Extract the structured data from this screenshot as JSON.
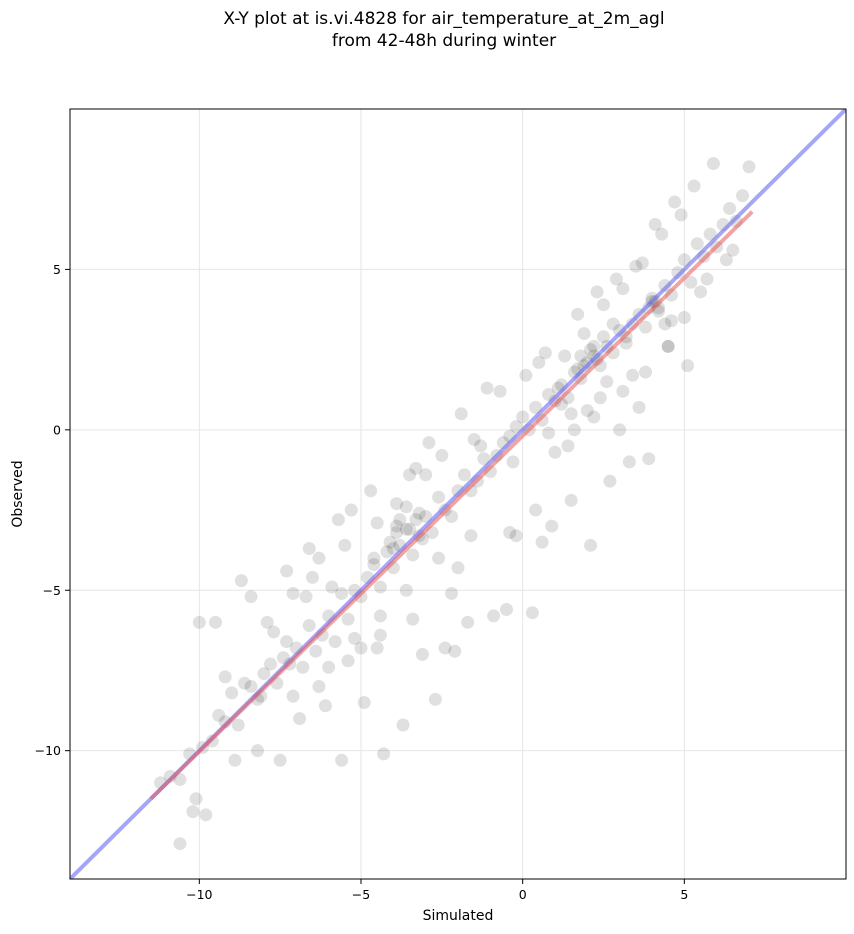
{
  "chart_data": {
    "type": "scatter",
    "title_line1": "X-Y plot at is.vi.4828 for air_temperature_at_2m_agl",
    "title_line2": "from 42-48h during winter",
    "xlabel": "Simulated",
    "ylabel": "Observed",
    "xlim": [
      -14,
      10
    ],
    "ylim": [
      -14,
      10
    ],
    "x_ticks": [
      -10,
      -5,
      0,
      5
    ],
    "y_ticks": [
      -10,
      -5,
      0,
      5
    ],
    "x_tick_labels": [
      "−10",
      "−5",
      "0",
      "5"
    ],
    "y_tick_labels": [
      "−10",
      "−5",
      "0",
      "5"
    ],
    "grid": true,
    "point_color": "#000000",
    "identity_line": {
      "x": [
        -14,
        10
      ],
      "y": [
        -14,
        10
      ],
      "color": "#6b6bf0"
    },
    "fit_line": {
      "x": [
        -11.5,
        7.1
      ],
      "y": [
        -11.5,
        6.8
      ],
      "color": "#e85a5a"
    },
    "points_x": [
      -11.2,
      -10.9,
      -10.6,
      -10.3,
      -10.1,
      -9.9,
      -9.6,
      -9.4,
      -9.2,
      -9.0,
      -8.8,
      -8.6,
      -8.4,
      -8.2,
      -8.0,
      -7.8,
      -7.6,
      -7.4,
      -7.2,
      -7.0,
      -6.8,
      -6.6,
      -6.4,
      -6.2,
      -6.0,
      -5.8,
      -5.6,
      -5.4,
      -5.2,
      -5.0,
      -4.8,
      -4.6,
      -4.4,
      -4.2,
      -4.0,
      -3.8,
      -3.6,
      -3.4,
      -3.2,
      -3.0,
      -2.8,
      -2.6,
      -2.4,
      -2.2,
      -2.0,
      -1.8,
      -1.6,
      -1.4,
      -1.2,
      -1.0,
      -0.8,
      -0.6,
      -0.4,
      -0.2,
      0.0,
      0.2,
      0.4,
      0.6,
      0.8,
      1.0,
      1.2,
      1.4,
      1.6,
      1.8,
      2.0,
      2.2,
      2.4,
      2.6,
      2.8,
      3.0,
      3.2,
      3.4,
      3.6,
      3.8,
      4.0,
      4.2,
      4.4,
      4.6,
      4.8,
      5.0,
      5.2,
      5.4,
      5.6,
      5.8,
      6.0,
      6.2,
      6.4,
      6.6,
      6.8,
      -10.6,
      -10.2,
      -9.8,
      -8.9,
      -8.2,
      -7.5,
      -6.9,
      -6.1,
      -5.6,
      -4.9,
      -4.3,
      -3.7,
      -3.1,
      -2.7,
      -2.1,
      -1.7,
      -0.9,
      -0.5,
      0.3,
      0.9,
      1.5,
      2.1,
      2.7,
      3.3,
      3.9,
      4.5,
      5.1,
      5.7,
      6.3,
      -9.5,
      -8.7,
      -7.9,
      -7.1,
      -6.3,
      -5.5,
      -4.7,
      -3.9,
      -3.3,
      -2.5,
      -1.5,
      -0.7,
      0.5,
      1.1,
      1.7,
      2.3,
      2.9,
      3.5,
      4.1,
      4.7,
      5.3,
      5.9,
      -7.3,
      -6.7,
      -5.9,
      -5.3,
      -4.5,
      -3.5,
      -2.9,
      -1.9,
      -1.1,
      0.1,
      0.7,
      1.3,
      1.9,
      2.5,
      3.1,
      3.7,
      4.3,
      4.9,
      -3.8,
      -3.5,
      -3.2,
      -4.1,
      -3.9,
      1.8,
      2.2,
      2.5,
      1.2,
      1.5,
      2.8,
      3.2,
      4.0,
      4.2,
      -4.4,
      -2.4,
      -0.3,
      1.0,
      3.0,
      -6.5,
      -5.0,
      -2.0,
      0.6,
      3.6,
      -8.4,
      -7.7,
      -6.6,
      -5.7,
      -4.6,
      -3.0,
      -1.3,
      0.8,
      2.4,
      4.4,
      -10.0,
      -9.2,
      -8.1,
      -7.3,
      -6.0,
      -5.2,
      -4.4,
      -3.6,
      -2.6,
      -1.6,
      -0.2,
      1.4,
      2.0,
      2.6,
      3.4,
      4.6,
      5.5,
      6.5,
      7.0,
      -7.1,
      -6.3,
      -5.4,
      -4.5,
      -3.4,
      -2.2,
      -0.4,
      0.4,
      1.6,
      2.2,
      3.1,
      3.8,
      4.5,
      5.0,
      -3.9,
      -3.3,
      -4.0,
      -3.6,
      -3.1,
      1.9,
      2.3,
      2.1,
      1.7,
      4.1,
      3.9
    ],
    "points_y": [
      -11.0,
      -10.8,
      -10.9,
      -10.1,
      -11.5,
      -9.9,
      -9.7,
      -8.9,
      -9.1,
      -8.2,
      -9.2,
      -7.9,
      -8.0,
      -8.4,
      -7.6,
      -7.3,
      -7.9,
      -7.1,
      -7.3,
      -6.8,
      -7.4,
      -6.1,
      -6.9,
      -6.4,
      -5.8,
      -6.6,
      -5.1,
      -5.9,
      -5.0,
      -5.2,
      -4.6,
      -4.2,
      -4.9,
      -3.8,
      -4.3,
      -3.6,
      -3.1,
      -3.9,
      -3.3,
      -2.7,
      -3.2,
      -2.1,
      -2.5,
      -2.7,
      -1.9,
      -1.4,
      -1.9,
      -1.6,
      -0.9,
      -1.3,
      -0.8,
      -0.4,
      -0.2,
      0.1,
      0.4,
      0.0,
      0.7,
      0.3,
      1.1,
      0.9,
      1.4,
      1.0,
      1.8,
      1.6,
      2.1,
      2.3,
      2.0,
      2.6,
      2.4,
      3.1,
      2.7,
      3.3,
      3.6,
      3.2,
      4.0,
      3.7,
      4.5,
      4.2,
      4.9,
      5.3,
      4.6,
      5.8,
      5.4,
      6.1,
      5.7,
      6.4,
      6.9,
      6.5,
      7.3,
      -12.9,
      -11.9,
      -12.0,
      -10.3,
      -10.0,
      -10.3,
      -9.0,
      -8.6,
      -10.3,
      -8.5,
      -10.1,
      -9.2,
      -7.0,
      -8.4,
      -6.9,
      -6.0,
      -5.8,
      -5.6,
      -5.7,
      -3.0,
      -2.2,
      -3.6,
      -1.6,
      -1.0,
      -0.9,
      2.6,
      2.0,
      4.7,
      5.3,
      -6.0,
      -4.7,
      -6.0,
      -5.1,
      -4.0,
      -3.6,
      -1.9,
      -2.3,
      -1.2,
      -0.8,
      -0.3,
      1.2,
      2.1,
      1.3,
      3.6,
      4.3,
      4.7,
      5.1,
      6.4,
      7.1,
      7.6,
      8.3,
      -4.4,
      -5.2,
      -4.9,
      -2.5,
      -2.9,
      -1.4,
      -0.4,
      0.5,
      1.3,
      1.7,
      2.4,
      2.3,
      3.0,
      3.9,
      4.4,
      5.2,
      6.1,
      6.7,
      -2.8,
      -3.1,
      -2.6,
      -3.5,
      -3.0,
      2.3,
      2.6,
      2.9,
      0.8,
      0.5,
      3.3,
      2.9,
      4.1,
      3.8,
      -6.4,
      -6.8,
      -1.0,
      -0.7,
      0.0,
      -4.6,
      -6.8,
      -4.3,
      -3.5,
      0.7,
      -5.2,
      -6.3,
      -3.7,
      -2.8,
      -4.0,
      -1.4,
      -0.5,
      -0.1,
      1.0,
      3.3,
      -6.0,
      -7.7,
      -8.3,
      -6.6,
      -7.4,
      -6.5,
      -5.8,
      -5.0,
      -4.0,
      -3.3,
      -3.3,
      -0.5,
      0.6,
      1.5,
      1.7,
      3.4,
      4.3,
      5.6,
      8.2,
      -8.3,
      -8.0,
      -7.2,
      -6.8,
      -5.9,
      -5.1,
      -3.2,
      -2.5,
      0.0,
      0.4,
      1.2,
      1.8,
      2.6,
      3.5,
      -3.2,
      -2.8,
      -3.7,
      -2.4,
      -3.4,
      2.0,
      2.2,
      2.5,
      1.9,
      4.0,
      3.8
    ]
  }
}
